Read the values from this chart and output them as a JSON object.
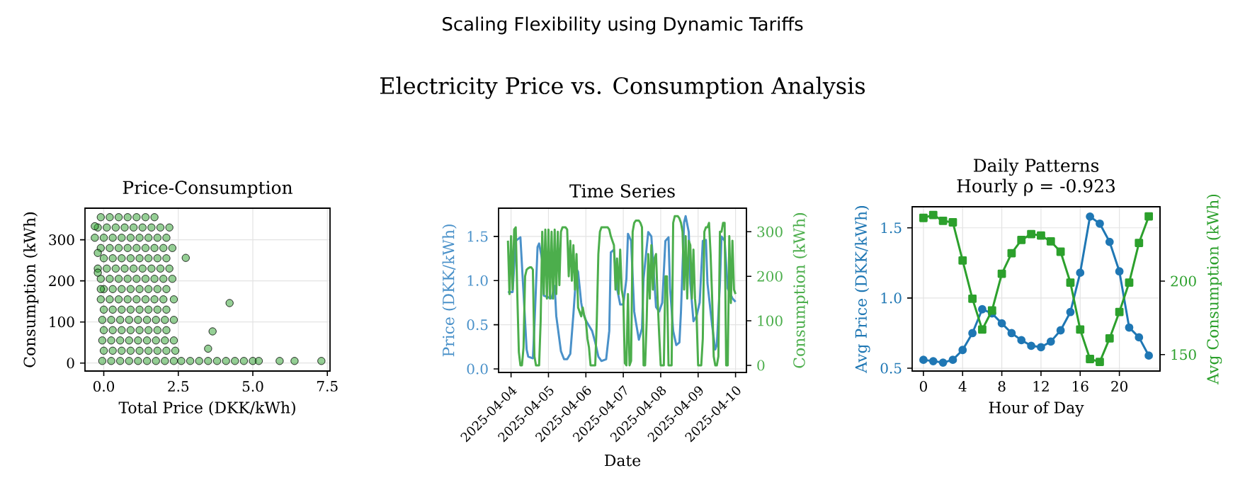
{
  "chart_data": [
    {
      "type": "other",
      "title": "Scaling Flexibility using Dynamic Tariffs",
      "subtitle": "Electricity Price vs. Consumption Analysis"
    },
    {
      "type": "scatter",
      "title": "Price-Consumption",
      "xlabel": "Total Price (DKK/kWh)",
      "ylabel": "Consumption (kWh)",
      "xlim": [
        -0.63,
        7.59
      ],
      "ylim": [
        -19.5,
        377
      ],
      "xticks": [
        {
          "value": 0,
          "label": "0.0"
        },
        2.5,
        {
          "value": 5,
          "label": "5.0"
        },
        7.5
      ],
      "yticks": [
        0,
        100,
        200,
        300
      ],
      "grid": true,
      "marker": "circle",
      "series": [
        {
          "color": "#2ca02c",
          "x": [
            -0.1,
            0.2,
            0.5,
            0.8,
            1.1,
            1.4,
            1.7,
            -0.2,
            0.1,
            0.4,
            0.7,
            1.0,
            1.3,
            1.6,
            1.9,
            -0.3,
            0.0,
            0.3,
            0.6,
            0.9,
            1.2,
            1.5,
            1.8,
            2.1,
            -0.1,
            0.2,
            0.5,
            0.8,
            1.1,
            1.4,
            1.7,
            2.0,
            2.3,
            0.0,
            0.3,
            0.6,
            0.9,
            1.2,
            1.5,
            1.8,
            2.1,
            -0.2,
            0.1,
            0.4,
            0.7,
            1.0,
            1.3,
            1.6,
            1.9,
            2.2,
            -0.1,
            0.2,
            0.5,
            0.8,
            1.1,
            1.4,
            1.7,
            2.0,
            2.3,
            0.0,
            0.3,
            0.6,
            0.9,
            1.2,
            1.5,
            1.8,
            2.1,
            -0.1,
            0.2,
            0.5,
            0.8,
            1.1,
            1.4,
            1.7,
            2.0,
            2.35,
            0.0,
            0.3,
            0.6,
            0.9,
            1.2,
            1.5,
            1.8,
            2.1,
            -0.05,
            0.25,
            0.55,
            0.85,
            1.15,
            1.45,
            1.75,
            2.05,
            2.35,
            0.0,
            0.3,
            0.6,
            0.9,
            1.2,
            1.5,
            1.8,
            2.1,
            -0.05,
            0.25,
            0.55,
            0.85,
            1.15,
            1.45,
            1.75,
            2.05,
            2.35,
            0.0,
            0.3,
            0.6,
            0.9,
            1.2,
            1.5,
            1.8,
            2.1,
            2.4,
            -0.05,
            0.25,
            0.55,
            0.85,
            1.15,
            1.45,
            1.75,
            2.05,
            2.35,
            2.6,
            2.9,
            3.2,
            3.5,
            3.8,
            4.1,
            4.4,
            4.7,
            5.0,
            5.2,
            5.9,
            6.4,
            7.3,
            2.75,
            4.22,
            3.65,
            3.5,
            -0.3,
            -0.2,
            -0.2,
            -0.1,
            2.2
          ],
          "values": [
            355,
            355,
            355,
            355,
            355,
            355,
            355,
            330,
            330,
            330,
            330,
            330,
            330,
            330,
            330,
            305,
            305,
            305,
            305,
            305,
            305,
            305,
            305,
            305,
            280,
            280,
            280,
            280,
            280,
            280,
            280,
            280,
            280,
            255,
            255,
            255,
            255,
            255,
            255,
            255,
            255,
            230,
            230,
            230,
            230,
            230,
            230,
            230,
            230,
            230,
            205,
            205,
            205,
            205,
            205,
            205,
            205,
            205,
            205,
            180,
            180,
            180,
            180,
            180,
            180,
            180,
            180,
            155,
            155,
            155,
            155,
            155,
            155,
            155,
            155,
            155,
            130,
            130,
            130,
            130,
            130,
            130,
            130,
            130,
            105,
            105,
            105,
            105,
            105,
            105,
            105,
            105,
            105,
            80,
            80,
            80,
            80,
            80,
            80,
            80,
            80,
            55,
            55,
            55,
            55,
            55,
            55,
            55,
            55,
            55,
            30,
            30,
            30,
            30,
            30,
            30,
            30,
            30,
            30,
            5,
            5,
            5,
            5,
            5,
            5,
            5,
            5,
            5,
            5,
            5,
            5,
            5,
            5,
            5,
            5,
            5,
            5,
            5,
            5,
            5,
            5,
            256,
            146,
            77,
            35,
            333,
            268,
            220,
            180,
            330
          ]
        }
      ]
    },
    {
      "type": "line",
      "title": "Time Series",
      "xlabel": "Date",
      "ylabel": "Price (DKK/kWh)",
      "y2label": "Consumption (kWh)",
      "xlim": [
        "2025-04-03T16:00",
        "2025-04-10T07:00"
      ],
      "xticks": [
        "2025-04-04",
        "2025-04-05",
        "2025-04-06",
        "2025-04-07",
        "2025-04-08",
        "2025-04-09",
        "2025-04-10"
      ],
      "ylim": [
        -0.04,
        1.82
      ],
      "yticks": [
        {
          "value": 0,
          "label": "0.0"
        },
        {
          "value": 0.5,
          "label": "0.5"
        },
        {
          "value": 1,
          "label": "1.0"
        },
        {
          "value": 1.5,
          "label": "1.5"
        }
      ],
      "y2lim": [
        -16,
        353
      ],
      "y2ticks": [
        0,
        100,
        200,
        300
      ],
      "grid": true,
      "marker": "none",
      "series": [
        {
          "color": "#4a91c9",
          "x": [
            "2025-04-03T22:00",
            "2025-04-04T01:00",
            "2025-04-04T03:00",
            "2025-04-04T06:00",
            "2025-04-04T08:00",
            "2025-04-04T10:00",
            "2025-04-04T11:00",
            "2025-04-04T14:00",
            "2025-04-04T15:00",
            "2025-04-04T17:00",
            "2025-04-04T18:00",
            "2025-04-04T20:00",
            "2025-04-04T21:00",
            "2025-04-05T00:00",
            "2025-04-05T02:00",
            "2025-04-05T04:00",
            "2025-04-05T05:00",
            "2025-04-05T08:00",
            "2025-04-05T10:00",
            "2025-04-05T12:00",
            "2025-04-05T14:00",
            "2025-04-05T16:00",
            "2025-04-05T18:00",
            "2025-04-05T19:00",
            "2025-04-05T21:00",
            "2025-04-05T22:00",
            "2025-04-06T00:00",
            "2025-04-06T02:00",
            "2025-04-06T04:00",
            "2025-04-06T06:00",
            "2025-04-06T08:00",
            "2025-04-06T10:00",
            "2025-04-06T13:00",
            "2025-04-06T15:00",
            "2025-04-06T16:00",
            "2025-04-06T18:00",
            "2025-04-06T20:00",
            "2025-04-06T22:00",
            "2025-04-07T00:00",
            "2025-04-07T02:00",
            "2025-04-07T03:00",
            "2025-04-07T05:00",
            "2025-04-07T07:00",
            "2025-04-07T08:00",
            "2025-04-07T10:00",
            "2025-04-07T12:00",
            "2025-04-07T13:00",
            "2025-04-07T16:00",
            "2025-04-07T18:00",
            "2025-04-07T20:00",
            "2025-04-07T21:00",
            "2025-04-07T23:00",
            "2025-04-08T01:00",
            "2025-04-08T03:00",
            "2025-04-08T05:00",
            "2025-04-08T06:00",
            "2025-04-08T08:00",
            "2025-04-08T10:00",
            "2025-04-08T12:00",
            "2025-04-08T13:00",
            "2025-04-08T15:00",
            "2025-04-08T16:00",
            "2025-04-08T18:00",
            "2025-04-08T19:00",
            "2025-04-08T21:00",
            "2025-04-08T23:00",
            "2025-04-09T01:00",
            "2025-04-09T03:00",
            "2025-04-09T05:00",
            "2025-04-09T06:00",
            "2025-04-09T09:00",
            "2025-04-09T11:00",
            "2025-04-09T12:00",
            "2025-04-09T14:00",
            "2025-04-09T15:00",
            "2025-04-09T17:00",
            "2025-04-09T19:00",
            "2025-04-09T22:00",
            "2025-04-10T00:00"
          ],
          "values": [
            0.87,
            0.87,
            1.45,
            1.49,
            0.86,
            0.22,
            0.14,
            0.12,
            0.49,
            1.38,
            1.42,
            1.23,
            0.83,
            0.81,
            0.8,
            0.94,
            0.6,
            0.2,
            0.11,
            0.11,
            0.17,
            0.62,
            1.13,
            1.1,
            0.75,
            0.65,
            0.55,
            0.49,
            0.43,
            0.3,
            0.14,
            0.09,
            0.11,
            0.43,
            1.32,
            1.35,
            0.91,
            0.73,
            0.73,
            1.02,
            1.53,
            1.45,
            0.65,
            0.54,
            0.33,
            0.46,
            1.02,
            1.55,
            1.5,
            0.97,
            0.7,
            0.65,
            0.75,
            1.45,
            1.49,
            0.91,
            0.43,
            0.27,
            0.3,
            0.65,
            1.66,
            1.73,
            1.55,
            0.97,
            0.54,
            0.6,
            0.75,
            1.45,
            1.46,
            0.97,
            0.49,
            0.22,
            0.27,
            0.97,
            1.5,
            1.45,
            0.91,
            0.8,
            0.76
          ]
        },
        {
          "color": "#4cae4c",
          "axis": "y2",
          "x": [
            "2025-04-03T22:00",
            "2025-04-03T23:00",
            "2025-04-04T00:00",
            "2025-04-04T01:00",
            "2025-04-04T02:00",
            "2025-04-04T03:00",
            "2025-04-04T04:00",
            "2025-04-04T05:00",
            "2025-04-04T06:00",
            "2025-04-04T07:00",
            "2025-04-04T08:00",
            "2025-04-04T09:00",
            "2025-04-04T10:00",
            "2025-04-04T11:00",
            "2025-04-04T12:00",
            "2025-04-04T13:00",
            "2025-04-04T14:00",
            "2025-04-04T15:00",
            "2025-04-04T16:00",
            "2025-04-04T17:00",
            "2025-04-04T18:00",
            "2025-04-04T19:00",
            "2025-04-04T20:00",
            "2025-04-04T21:00",
            "2025-04-04T22:00",
            "2025-04-04T23:00",
            "2025-04-05T00:00",
            "2025-04-05T01:00",
            "2025-04-05T02:00",
            "2025-04-05T03:00",
            "2025-04-05T04:00",
            "2025-04-05T05:00",
            "2025-04-05T06:00",
            "2025-04-05T07:00",
            "2025-04-05T08:00",
            "2025-04-05T09:00",
            "2025-04-05T10:00",
            "2025-04-05T11:00",
            "2025-04-05T12:00",
            "2025-04-05T13:00",
            "2025-04-05T14:00",
            "2025-04-05T15:00",
            "2025-04-05T16:00",
            "2025-04-05T17:00",
            "2025-04-05T18:00",
            "2025-04-05T19:00",
            "2025-04-05T20:00",
            "2025-04-05T21:00",
            "2025-04-05T22:00",
            "2025-04-05T23:00",
            "2025-04-06T00:00",
            "2025-04-06T01:00",
            "2025-04-06T02:00",
            "2025-04-06T03:00",
            "2025-04-06T04:00",
            "2025-04-06T05:00",
            "2025-04-06T06:00",
            "2025-04-06T07:00",
            "2025-04-06T08:00",
            "2025-04-06T09:00",
            "2025-04-06T10:00",
            "2025-04-06T11:00",
            "2025-04-06T12:00",
            "2025-04-06T13:00",
            "2025-04-06T14:00",
            "2025-04-06T15:00",
            "2025-04-06T16:00",
            "2025-04-06T17:00",
            "2025-04-06T18:00",
            "2025-04-06T19:00",
            "2025-04-06T20:00",
            "2025-04-06T21:00",
            "2025-04-06T22:00",
            "2025-04-06T23:00",
            "2025-04-07T00:00",
            "2025-04-07T01:00",
            "2025-04-07T02:00",
            "2025-04-07T03:00",
            "2025-04-07T04:00",
            "2025-04-07T05:00",
            "2025-04-07T06:00",
            "2025-04-07T07:00",
            "2025-04-07T08:00",
            "2025-04-07T09:00",
            "2025-04-07T10:00",
            "2025-04-07T11:00",
            "2025-04-07T12:00",
            "2025-04-07T13:00",
            "2025-04-07T14:00",
            "2025-04-07T15:00",
            "2025-04-07T16:00",
            "2025-04-07T17:00",
            "2025-04-07T18:00",
            "2025-04-07T19:00",
            "2025-04-07T20:00",
            "2025-04-07T21:00",
            "2025-04-07T22:00",
            "2025-04-07T23:00",
            "2025-04-08T00:00",
            "2025-04-08T01:00",
            "2025-04-08T02:00",
            "2025-04-08T03:00",
            "2025-04-08T04:00",
            "2025-04-08T05:00",
            "2025-04-08T06:00",
            "2025-04-08T07:00",
            "2025-04-08T08:00",
            "2025-04-08T09:00",
            "2025-04-08T10:00",
            "2025-04-08T11:00",
            "2025-04-08T12:00",
            "2025-04-08T13:00",
            "2025-04-08T14:00",
            "2025-04-08T15:00",
            "2025-04-08T16:00",
            "2025-04-08T17:00",
            "2025-04-08T18:00",
            "2025-04-08T19:00",
            "2025-04-08T20:00",
            "2025-04-08T21:00",
            "2025-04-08T22:00",
            "2025-04-08T23:00",
            "2025-04-09T00:00",
            "2025-04-09T01:00",
            "2025-04-09T02:00",
            "2025-04-09T03:00",
            "2025-04-09T04:00",
            "2025-04-09T05:00",
            "2025-04-09T06:00",
            "2025-04-09T07:00",
            "2025-04-09T08:00",
            "2025-04-09T09:00",
            "2025-04-09T10:00",
            "2025-04-09T11:00",
            "2025-04-09T12:00",
            "2025-04-09T13:00",
            "2025-04-09T14:00",
            "2025-04-09T15:00",
            "2025-04-09T16:00",
            "2025-04-09T17:00",
            "2025-04-09T18:00",
            "2025-04-09T19:00",
            "2025-04-09T20:00",
            "2025-04-09T21:00",
            "2025-04-09T22:00",
            "2025-04-09T23:00",
            "2025-04-10T00:00"
          ],
          "values": [
            280,
            160,
            290,
            170,
            305,
            310,
            160,
            30,
            0,
            0,
            40,
            200,
            215,
            218,
            220,
            220,
            215,
            20,
            0,
            0,
            0,
            100,
            300,
            160,
            305,
            150,
            305,
            150,
            300,
            150,
            305,
            160,
            300,
            180,
            300,
            310,
            310,
            310,
            305,
            200,
            280,
            190,
            270,
            170,
            250,
            130,
            120,
            110,
            130,
            110,
            100,
            60,
            40,
            0,
            0,
            0,
            0,
            100,
            250,
            300,
            310,
            310,
            310,
            310,
            310,
            305,
            290,
            280,
            270,
            170,
            240,
            160,
            260,
            170,
            150,
            5,
            0,
            160,
            0,
            10,
            300,
            320,
            325,
            325,
            325,
            320,
            310,
            0,
            0,
            100,
            250,
            150,
            270,
            170,
            240,
            250,
            150,
            70,
            0,
            0,
            0,
            200,
            200,
            0,
            0,
            0,
            320,
            335,
            335,
            335,
            330,
            320,
            300,
            170,
            290,
            150,
            280,
            270,
            150,
            260,
            150,
            110,
            0,
            0,
            0,
            60,
            300,
            310,
            310,
            320,
            250,
            150,
            20,
            0,
            0,
            20,
            300,
            300,
            320,
            320,
            0,
            0,
            290,
            140,
            280,
            170,
            160
          ]
        }
      ]
    },
    {
      "type": "line",
      "title": "Daily Patterns",
      "subtitle": "Hourly ρ = -0.923",
      "xlabel": "Hour of Day",
      "ylabel": "Avg Price (DKK/kWh)",
      "y2label": "Avg Consumption (kWh)",
      "xlim": [
        -1.15,
        24.15
      ],
      "xticks": [
        0,
        4,
        8,
        12,
        16,
        20
      ],
      "ylim": [
        0.48,
        1.65
      ],
      "yticks": [
        {
          "value": 0.5,
          "label": "0.5"
        },
        {
          "value": 1,
          "label": "1.0"
        },
        {
          "value": 1.5,
          "label": "1.5"
        }
      ],
      "y2lim": [
        138.8,
        250.6
      ],
      "y2ticks": [
        150,
        200
      ],
      "grid": true,
      "x": [
        0,
        1,
        2,
        3,
        4,
        5,
        6,
        7,
        8,
        9,
        10,
        11,
        12,
        13,
        14,
        15,
        16,
        17,
        18,
        19,
        20,
        21,
        22,
        23
      ],
      "series": [
        {
          "color": "#1f77b4",
          "marker": "circle",
          "values": [
            0.56,
            0.55,
            0.54,
            0.56,
            0.63,
            0.75,
            0.92,
            0.89,
            0.82,
            0.75,
            0.7,
            0.66,
            0.65,
            0.69,
            0.77,
            0.9,
            1.18,
            1.58,
            1.53,
            1.4,
            1.19,
            0.79,
            0.72,
            0.59
          ]
        },
        {
          "color": "#2ca02c",
          "marker": "square",
          "axis": "y2",
          "values": [
            243,
            245,
            241,
            240,
            214,
            188,
            167,
            180,
            205,
            219,
            228,
            232,
            231,
            227,
            220,
            199,
            167,
            147,
            145,
            161,
            179,
            199,
            226,
            244
          ]
        }
      ]
    }
  ]
}
